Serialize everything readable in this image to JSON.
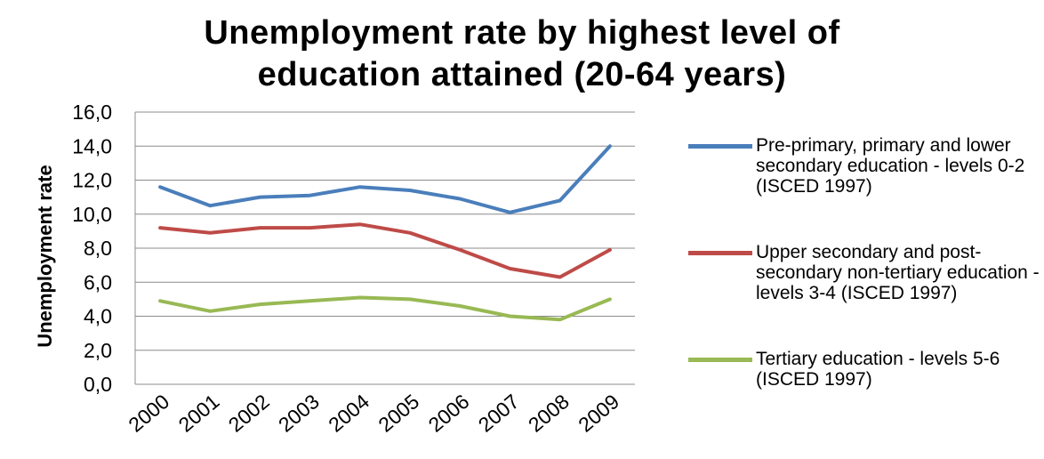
{
  "chart_data": {
    "type": "line",
    "title_lines": [
      "Unemployment rate by highest level of",
      "education attained (20-64 years)"
    ],
    "ylabel": "Unemployment rate",
    "xlabel": "",
    "ylim": [
      0,
      16
    ],
    "ytick_step": 2,
    "ytick_labels": [
      "0,0",
      "2,0",
      "4,0",
      "6,0",
      "8,0",
      "10,0",
      "12,0",
      "14,0",
      "16,0"
    ],
    "categories": [
      "2000",
      "2001",
      "2002",
      "2003",
      "2004",
      "2005",
      "2006",
      "2007",
      "2008",
      "2009"
    ],
    "grid": true,
    "legend_position": "right",
    "series": [
      {
        "name": "Pre-primary, primary and lower secondary education - levels 0-2 (ISCED 1997)",
        "color": "#4a7ebb",
        "values": [
          11.6,
          10.5,
          11.0,
          11.1,
          11.6,
          11.4,
          10.9,
          10.1,
          10.8,
          14.0
        ]
      },
      {
        "name": "Upper secondary and post-secondary non-tertiary education - levels 3-4 (ISCED 1997)",
        "color": "#be4b48",
        "values": [
          9.2,
          8.9,
          9.2,
          9.2,
          9.4,
          8.9,
          7.9,
          6.8,
          6.3,
          7.9
        ]
      },
      {
        "name": "Tertiary education - levels 5-6 (ISCED 1997)",
        "color": "#98b954",
        "values": [
          4.9,
          4.3,
          4.7,
          4.9,
          5.1,
          5.0,
          4.6,
          4.0,
          3.8,
          5.0
        ]
      }
    ]
  }
}
